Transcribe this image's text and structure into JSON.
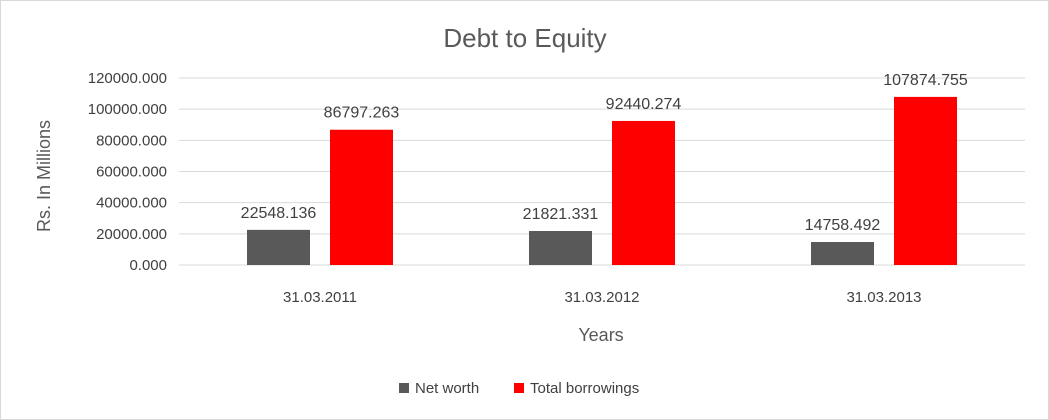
{
  "chart_data": {
    "type": "bar",
    "title": "Debt to Equity",
    "xlabel": "Years",
    "ylabel": "Rs. In Millions",
    "categories": [
      "31.03.2011",
      "31.03.2012",
      "31.03.2013"
    ],
    "series": [
      {
        "name": "Net worth",
        "color": "#595959",
        "values": [
          22548.136,
          21821.331,
          14758.492
        ],
        "labels": [
          "22548.136",
          "21821.331",
          "14758.492"
        ]
      },
      {
        "name": "Total borrowings",
        "color": "#ff0000",
        "values": [
          86797.263,
          92440.274,
          107874.755
        ],
        "labels": [
          "86797.263",
          "92440.274",
          "107874.755"
        ]
      }
    ],
    "ylim": [
      0,
      120000
    ],
    "yticks": [
      0,
      20000,
      40000,
      60000,
      80000,
      100000,
      120000
    ],
    "ytick_labels": [
      "0.000",
      "20000.000",
      "40000.000",
      "60000.000",
      "80000.000",
      "100000.000",
      "120000.000"
    ],
    "grid": true,
    "legend_position": "bottom"
  }
}
